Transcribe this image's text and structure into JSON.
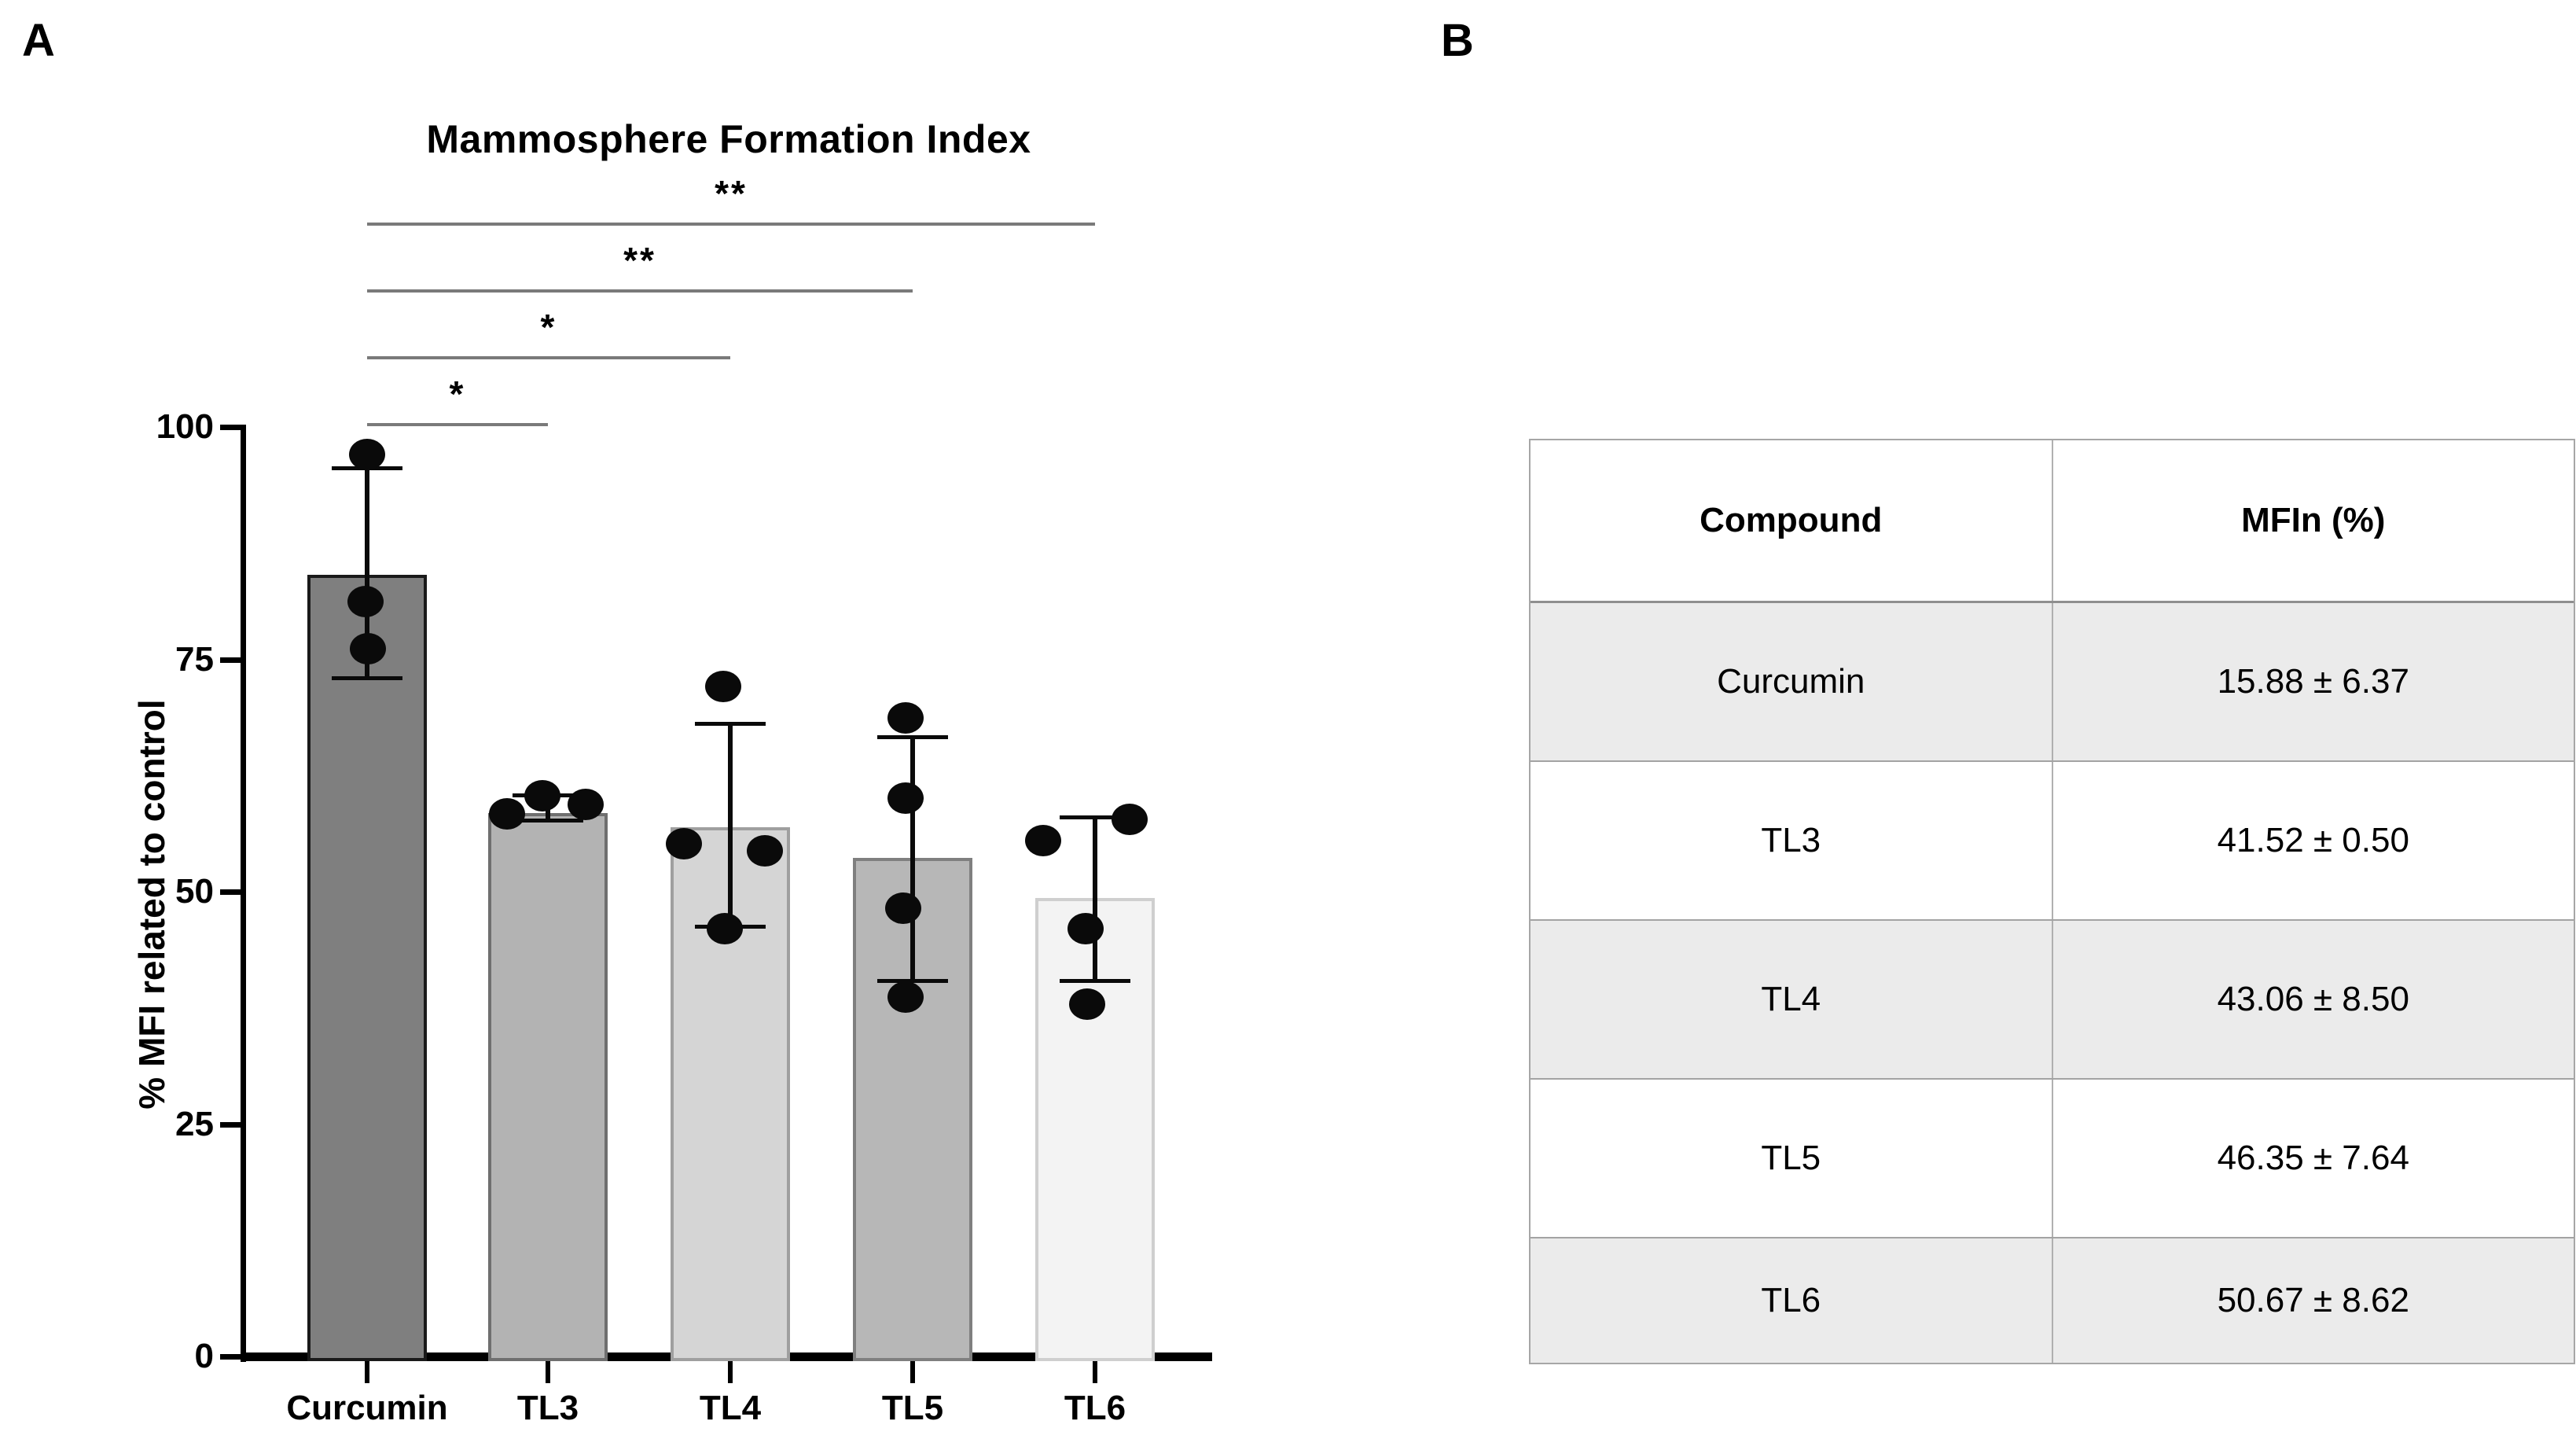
{
  "panels": {
    "a": "A",
    "b": "B"
  },
  "chart_data": [
    {
      "type": "bar",
      "title": "Mammosphere Formation Index",
      "ylabel": "% MFI related to control",
      "xlabel": "",
      "ylim": [
        0,
        100
      ],
      "yticks": [
        0,
        25,
        50,
        75,
        100
      ],
      "grid": false,
      "legend_position": "none",
      "categories": [
        "Curcumin",
        "TL3",
        "TL4",
        "TL5",
        "TL6"
      ],
      "series": [
        {
          "name": "% MFI related to control",
          "values": [
            84.1,
            58.5,
            56.9,
            53.6,
            49.3
          ]
        }
      ],
      "error_bars": [
        {
          "top": 95.6,
          "bottom": 73.0
        },
        {
          "top": 60.4,
          "bottom": 57.7
        },
        {
          "top": 68.1,
          "bottom": 46.3
        },
        {
          "top": 66.7,
          "bottom": 40.4
        },
        {
          "top": 58.0,
          "bottom": 40.4
        }
      ],
      "points": [
        [
          97.0,
          81.2,
          76.1
        ],
        [
          58.4,
          60.3,
          59.4
        ],
        [
          72.1,
          55.2,
          54.4,
          46.0
        ],
        [
          68.7,
          60.1,
          48.2,
          38.7
        ],
        [
          57.8,
          55.5,
          46.0,
          37.9
        ]
      ],
      "point_offsets": [
        [
          0,
          -2,
          1
        ],
        [
          -52,
          -7,
          48
        ],
        [
          -9,
          -59,
          44,
          -7
        ],
        [
          -9,
          -9,
          -12,
          -9
        ],
        [
          44,
          -66,
          -12,
          -10
        ]
      ],
      "bar_colors": [
        "#7f7f7f",
        "#b3b3b3",
        "#d5d5d5",
        "#b7b7b7",
        "#f3f3f3"
      ],
      "bar_border_colors": [
        "#1a1a1a",
        "#6f6f6f",
        "#9f9f9f",
        "#7f7f7f",
        "#cfcfcf"
      ],
      "point_color": "#0a0a0a",
      "bracket_color": "#7a7a7a",
      "significance": [
        {
          "from": "Curcumin",
          "to": "TL3",
          "label": "*"
        },
        {
          "from": "Curcumin",
          "to": "TL4",
          "label": "*"
        },
        {
          "from": "Curcumin",
          "to": "TL5",
          "label": "**"
        },
        {
          "from": "Curcumin",
          "to": "TL6",
          "label": "**"
        }
      ]
    },
    {
      "type": "table",
      "headers": [
        "Compound",
        "MFIn (%)"
      ],
      "rows": [
        [
          "Curcumin",
          "15.88 ± 6.37"
        ],
        [
          "TL3",
          "41.52 ± 0.50"
        ],
        [
          "TL4",
          "43.06 ± 8.50"
        ],
        [
          "TL5",
          "46.35 ± 7.64"
        ],
        [
          "TL6",
          "50.67 ± 8.62"
        ]
      ]
    }
  ]
}
